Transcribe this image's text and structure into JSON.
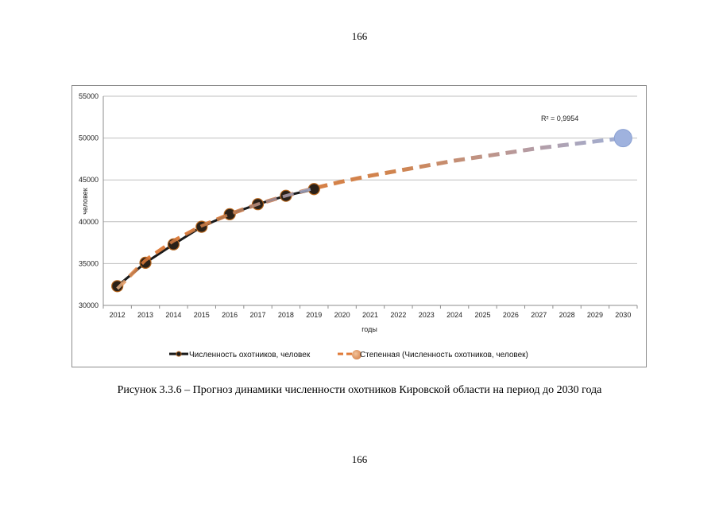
{
  "page": {
    "number_top": "166",
    "number_bottom": "166"
  },
  "caption": "Рисунок 3.3.6 – Прогноз динамики численности охотников Кировской области на период до 2030 года",
  "chart_data": {
    "type": "line",
    "title": "",
    "xlabel": "годы",
    "ylabel": "человек",
    "categories": [
      "2012",
      "2013",
      "2014",
      "2015",
      "2016",
      "2017",
      "2018",
      "2019",
      "2020",
      "2021",
      "2022",
      "2023",
      "2024",
      "2025",
      "2026",
      "2027",
      "2028",
      "2029",
      "2030"
    ],
    "ylim": [
      30000,
      55000
    ],
    "yticks": [
      30000,
      35000,
      40000,
      45000,
      50000,
      55000
    ],
    "grid": true,
    "series": [
      {
        "name": "Численность охотников, человек",
        "style": "solid-markers",
        "color": "#1a1a1a",
        "marker_edge": "#b5651d",
        "x": [
          "2012",
          "2013",
          "2014",
          "2015",
          "2016",
          "2017",
          "2018",
          "2019"
        ],
        "values": [
          32300,
          35100,
          37300,
          39400,
          40900,
          42100,
          43100,
          43900
        ]
      },
      {
        "name": "Степенная (Численность охотников, человек)",
        "style": "dashed-trendline",
        "color": "#e07b39",
        "x": [
          "2012",
          "2013",
          "2014",
          "2015",
          "2016",
          "2017",
          "2018",
          "2019",
          "2020",
          "2021",
          "2022",
          "2023",
          "2024",
          "2025",
          "2026",
          "2027",
          "2028",
          "2029",
          "2030"
        ],
        "values": [
          32000,
          35400,
          37700,
          39500,
          40900,
          42100,
          43100,
          44000,
          44800,
          45500,
          46100,
          46700,
          47300,
          47800,
          48300,
          48800,
          49200,
          49600,
          50000
        ]
      }
    ],
    "annotations": [
      {
        "text": "R² = 0,9954",
        "position": "top-right"
      }
    ],
    "legend_position": "bottom"
  }
}
